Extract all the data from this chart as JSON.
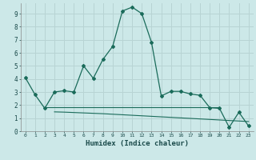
{
  "xlabel": "Humidex (Indice chaleur)",
  "bg_color": "#cce8e8",
  "grid_color": "#b8d4d4",
  "line_color": "#1a6b5a",
  "main_x": [
    0,
    1,
    2,
    3,
    4,
    5,
    6,
    7,
    8,
    9,
    10,
    11,
    12,
    13,
    14,
    15,
    16,
    17,
    18,
    19,
    20,
    21,
    22,
    23
  ],
  "main_y": [
    4.1,
    2.8,
    1.75,
    3.0,
    3.1,
    3.0,
    5.0,
    4.05,
    5.5,
    6.5,
    9.2,
    9.5,
    9.0,
    6.8,
    2.7,
    3.05,
    3.05,
    2.85,
    2.75,
    1.8,
    1.75,
    0.3,
    1.45,
    0.4
  ],
  "flat1_x": [
    2,
    3,
    4,
    5,
    6,
    7,
    8,
    9,
    10,
    11,
    12,
    13,
    14,
    15,
    16,
    17,
    18,
    19,
    20
  ],
  "flat1_y": [
    1.85,
    1.85,
    1.85,
    1.85,
    1.85,
    1.85,
    1.85,
    1.85,
    1.85,
    1.85,
    1.85,
    1.85,
    1.85,
    1.85,
    1.85,
    1.85,
    1.85,
    1.85,
    1.85
  ],
  "flat2_x": [
    3,
    4,
    5,
    6,
    7,
    8,
    9,
    10,
    11,
    12,
    13,
    14,
    15,
    16,
    17,
    18,
    19,
    20,
    21,
    22,
    23
  ],
  "flat2_y": [
    1.48,
    1.46,
    1.43,
    1.4,
    1.37,
    1.34,
    1.3,
    1.26,
    1.22,
    1.18,
    1.14,
    1.1,
    1.06,
    1.02,
    0.98,
    0.94,
    0.9,
    0.86,
    0.82,
    0.78,
    0.74
  ],
  "ylim": [
    0,
    9.8
  ],
  "xlim": [
    -0.5,
    23.5
  ],
  "yticks": [
    0,
    1,
    2,
    3,
    4,
    5,
    6,
    7,
    8,
    9
  ],
  "xticks": [
    0,
    1,
    2,
    3,
    4,
    5,
    6,
    7,
    8,
    9,
    10,
    11,
    12,
    13,
    14,
    15,
    16,
    17,
    18,
    19,
    20,
    21,
    22,
    23
  ]
}
